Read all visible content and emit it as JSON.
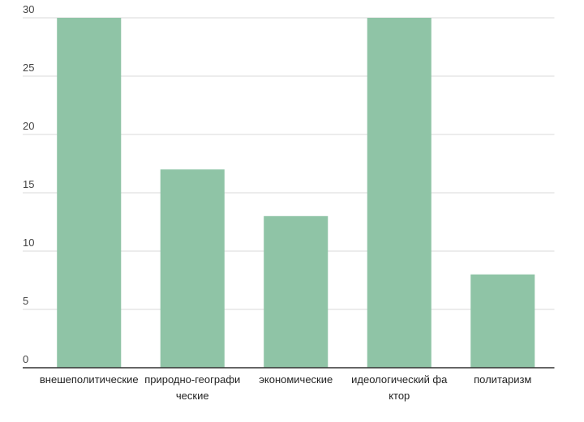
{
  "chart_data": {
    "type": "bar",
    "categories": [
      "внешеполитические",
      "природно-географические",
      "экономические",
      "идеологический фактор",
      "политаризм"
    ],
    "values": [
      30,
      17,
      13,
      30,
      8
    ],
    "color": "#8fc4a6",
    "ylim": [
      0,
      30
    ],
    "yticks": [
      0,
      5,
      10,
      15,
      20,
      25,
      30
    ],
    "grid": true
  }
}
